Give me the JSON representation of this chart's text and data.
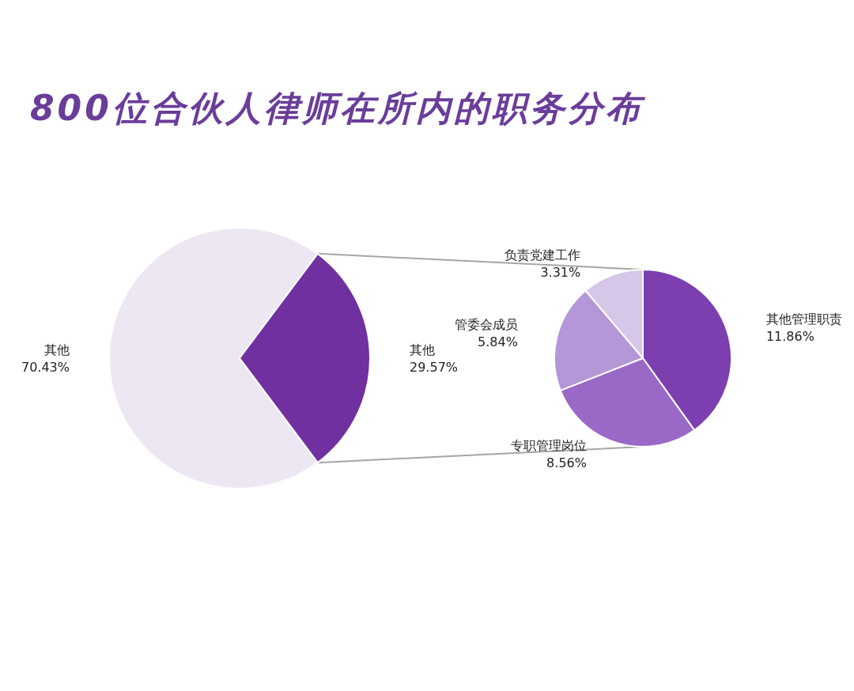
{
  "chart_data": [
    {
      "type": "pie",
      "title": "800位合伙人律师在所内的职务分布",
      "categories": [
        "其他",
        "其他"
      ],
      "values": [
        70.43,
        29.57
      ],
      "colors": [
        "#ede7f4",
        "#7030a0"
      ],
      "value_labels": [
        "70.43%",
        "29.57%"
      ]
    },
    {
      "type": "pie",
      "categories": [
        "其他管理职责",
        "专职管理岗位",
        "管委会成员",
        "负责党建工作"
      ],
      "values": [
        11.86,
        8.56,
        5.84,
        3.31
      ],
      "colors": [
        "#7d3fb0",
        "#9a68c6",
        "#b497d6",
        "#d6c6e8"
      ],
      "value_labels": [
        "11.86%",
        "8.56%",
        "5.84%",
        "3.31%"
      ]
    }
  ]
}
